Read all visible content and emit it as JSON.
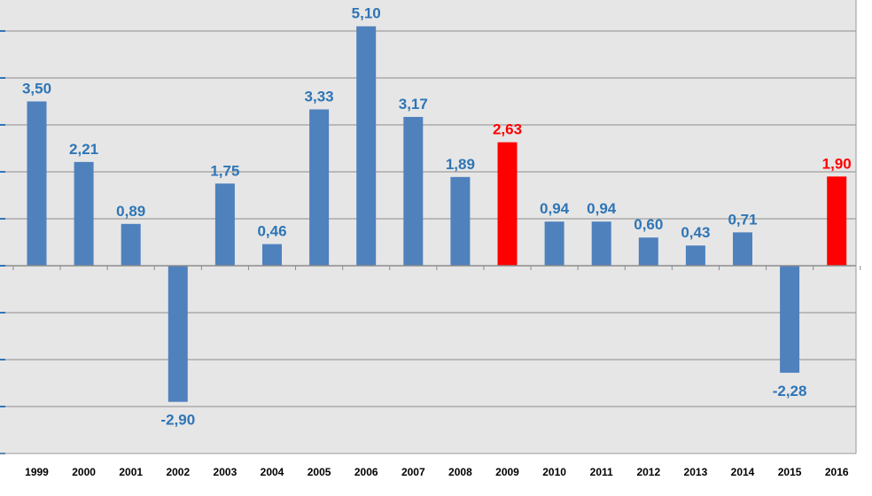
{
  "chart_data": {
    "type": "bar",
    "categories": [
      "1999",
      "2000",
      "2001",
      "2002",
      "2003",
      "2004",
      "2005",
      "2006",
      "2007",
      "2008",
      "2009",
      "2010",
      "2011",
      "2012",
      "2013",
      "2014",
      "2015",
      "2016"
    ],
    "values": [
      3.5,
      2.21,
      0.89,
      -2.9,
      1.75,
      0.46,
      3.33,
      5.1,
      3.17,
      1.89,
      2.63,
      0.94,
      0.94,
      0.6,
      0.43,
      0.71,
      -2.28,
      1.9
    ],
    "value_labels": [
      "3,50",
      "2,21",
      "0,89",
      "-2,90",
      "1,75",
      "0,46",
      "3,33",
      "5,10",
      "3,17",
      "1,89",
      "2,63",
      "0,94",
      "0,94",
      "0,60",
      "0,43",
      "0,71",
      "-2,28",
      "1,90"
    ],
    "highlighted": [
      "2009",
      "2016"
    ],
    "ylim": [
      -4,
      5.5
    ],
    "y_gridline_step": 1,
    "grid": true,
    "legend": false,
    "title": "",
    "xlabel": "",
    "ylabel": "",
    "colors": {
      "plot_background": "#e6e6e6",
      "gridline": "#8c8c8c",
      "bar_default": "#4f81bd",
      "bar_highlight": "#ff0000",
      "label_default": "#2e75b6",
      "label_highlight": "#ff0000",
      "tick_label": "#000000"
    }
  }
}
